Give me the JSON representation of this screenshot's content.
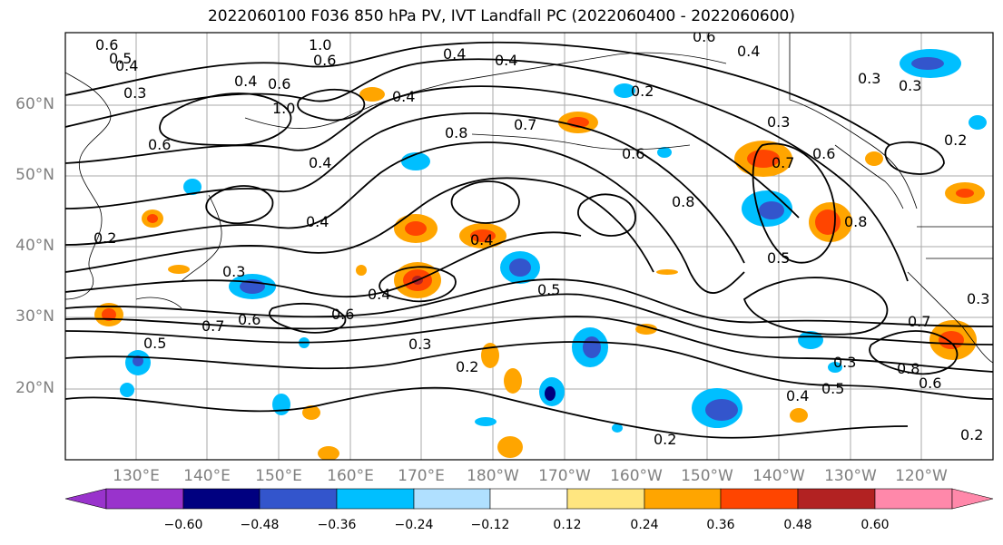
{
  "title": "2022060100 F036 850 hPa PV, IVT Landfall PC (2022060400 - 2022060600)",
  "map": {
    "lat_ticks": [
      "60°N",
      "50°N",
      "40°N",
      "30°N",
      "20°N"
    ],
    "lon_ticks": [
      "130°E",
      "140°E",
      "150°E",
      "160°E",
      "170°E",
      "180°W",
      "170°W",
      "160°W",
      "150°W",
      "140°W",
      "130°W",
      "120°W"
    ],
    "contour_labels": [
      "0.6",
      "0.5",
      "0.4",
      "1.0",
      "0.6",
      "0.4",
      "0.4",
      "0.6",
      "0.4",
      "0.3",
      "0.4",
      "0.2",
      "0.6",
      "0.4",
      "0.3",
      "0.8",
      "0.7",
      "0.6",
      "0.3",
      "0.7",
      "0.6",
      "0.2",
      "0.6",
      "1.0",
      "0.4",
      "0.3",
      "0.8",
      "0.4",
      "0.2",
      "0.3",
      "0.4",
      "0.6",
      "0.7",
      "0.6",
      "0.5",
      "0.4",
      "0.5",
      "0.3",
      "0.2",
      "0.3",
      "0.8",
      "0.5",
      "0.4",
      "0.2",
      "0.7",
      "0.8",
      "0.6",
      "0.3",
      "0.2",
      "0.5"
    ],
    "colors": {
      "grid": "#aaaaaa",
      "coast": "#000000",
      "contour": "#000000"
    }
  },
  "colorbar": {
    "ticks": [
      "−0.60",
      "−0.48",
      "−0.36",
      "−0.24",
      "−0.12",
      "0.12",
      "0.24",
      "0.36",
      "0.48",
      "0.60"
    ],
    "colors": [
      "#9933cc",
      "#000080",
      "#3355cc",
      "#00bfff",
      "#b0e0ff",
      "#ffffff",
      "#ffe680",
      "#ffa500",
      "#ff4500",
      "#b22222",
      "#ff88aa"
    ]
  }
}
